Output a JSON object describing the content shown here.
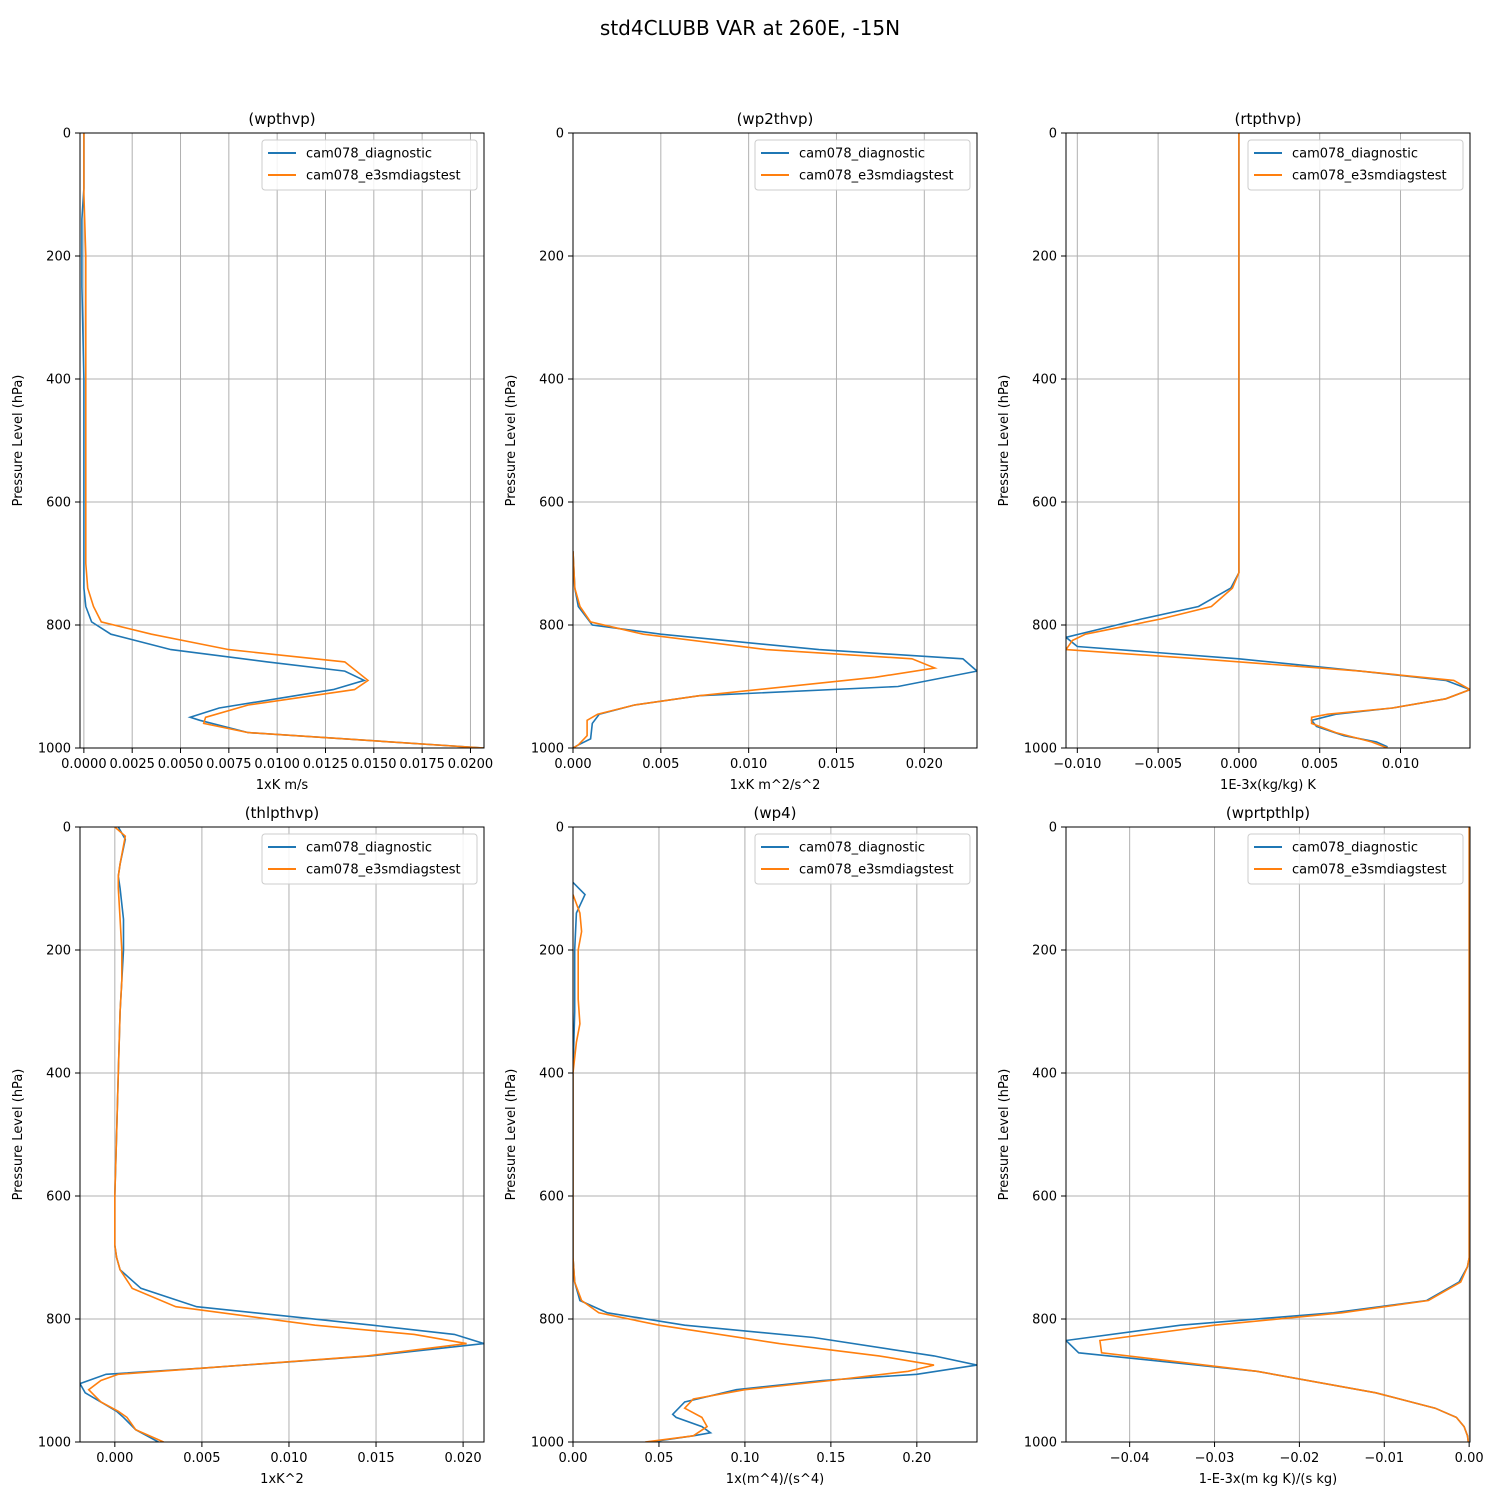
{
  "figure": {
    "title": "std4CLUBB VAR at 260E, -15N"
  },
  "colors": {
    "diagnostic": "#1f77b4",
    "e3smdiagstest": "#ff7f0e",
    "grid": "#b0b0b0",
    "axis": "#000000"
  },
  "chart_data": [
    {
      "type": "line",
      "title": "(wpthvp)",
      "xlabel": "1xK m/s",
      "ylabel": "Pressure Level (hPa)",
      "xlim": [
        -0.0002,
        0.0207
      ],
      "ylim": [
        1000,
        0
      ],
      "y_inverted": true,
      "grid": true,
      "legend": "top-right",
      "xticks": [
        0.0,
        0.0025,
        0.005,
        0.0075,
        0.01,
        0.0125,
        0.015,
        0.0175,
        0.02
      ],
      "xtick_labels": [
        "0.0000",
        "0.0025",
        "0.0050",
        "0.0075",
        "0.0100",
        "0.0125",
        "0.0150",
        "0.0175",
        "0.0200"
      ],
      "yticks": [
        0,
        200,
        400,
        600,
        800,
        1000
      ],
      "ytick_labels": [
        "0",
        "200",
        "400",
        "600",
        "800",
        "1000"
      ],
      "series": [
        {
          "name": "cam078_diagnostic",
          "x": [
            0.0,
            0.0,
            -0.0001,
            -0.0001,
            0.0,
            0.0,
            0.0,
            0.0,
            0.0,
            0.0001,
            0.0004,
            0.0014,
            0.0045,
            0.0095,
            0.0135,
            0.0145,
            0.0129,
            0.007,
            0.0055,
            0.006,
            0.0085,
            0.0207
          ],
          "y": [
            0,
            90,
            140,
            250,
            400,
            500,
            600,
            700,
            740,
            770,
            795,
            815,
            840,
            860,
            875,
            890,
            905,
            935,
            950,
            955,
            975,
            1000
          ]
        },
        {
          "name": "cam078_e3smdiagstest",
          "x": [
            0.0,
            0.0,
            0.0001,
            0.0001,
            0.0001,
            0.0001,
            0.0001,
            0.0001,
            0.0002,
            0.0005,
            0.0009,
            0.0035,
            0.0075,
            0.0135,
            0.0147,
            0.014,
            0.0085,
            0.0063,
            0.0062,
            0.0085,
            0.0207
          ],
          "y": [
            0,
            100,
            200,
            300,
            400,
            500,
            600,
            700,
            740,
            770,
            795,
            815,
            840,
            860,
            890,
            905,
            930,
            950,
            960,
            975,
            1000
          ]
        }
      ]
    },
    {
      "type": "line",
      "title": "(wp2thvp)",
      "xlabel": "1xK m^2/s^2",
      "ylabel": "Pressure Level (hPa)",
      "xlim": [
        0.0,
        0.023
      ],
      "ylim": [
        1000,
        0
      ],
      "y_inverted": true,
      "grid": true,
      "legend": "top-right",
      "xticks": [
        0.0,
        0.005,
        0.01,
        0.015,
        0.02
      ],
      "xtick_labels": [
        "0.000",
        "0.005",
        "0.010",
        "0.015",
        "0.020"
      ],
      "yticks": [
        0,
        200,
        400,
        600,
        800,
        1000
      ],
      "ytick_labels": [
        "0",
        "200",
        "400",
        "600",
        "800",
        "1000"
      ],
      "series": [
        {
          "name": "cam078_diagnostic",
          "x": [
            0.0,
            0.0001,
            0.0003,
            0.0011,
            0.005,
            0.014,
            0.0222,
            0.023,
            0.0185,
            0.0072,
            0.0035,
            0.0015,
            0.0011,
            0.001,
            0.0003,
            0.0
          ],
          "y": [
            680,
            740,
            770,
            800,
            815,
            840,
            855,
            875,
            900,
            915,
            930,
            945,
            960,
            985,
            995,
            1000
          ]
        },
        {
          "name": "cam078_e3smdiagstest",
          "x": [
            0.0,
            0.0001,
            0.0004,
            0.001,
            0.004,
            0.011,
            0.0193,
            0.0206,
            0.0172,
            0.0072,
            0.0035,
            0.0014,
            0.0008,
            0.0008,
            0.0003,
            0.0
          ],
          "y": [
            680,
            740,
            770,
            795,
            815,
            840,
            855,
            870,
            885,
            915,
            930,
            945,
            955,
            980,
            995,
            1000
          ]
        }
      ]
    },
    {
      "type": "line",
      "title": "(rtpthvp)",
      "xlabel": "1E-3x(kg/kg) K",
      "ylabel": "Pressure Level (hPa)",
      "xlim": [
        -0.0107,
        0.0143
      ],
      "ylim": [
        1000,
        0
      ],
      "y_inverted": true,
      "grid": true,
      "legend": "top-right",
      "xticks": [
        -0.01,
        -0.005,
        0.0,
        0.005,
        0.01
      ],
      "xtick_labels": [
        "−0.010",
        "−0.005",
        "0.000",
        "0.005",
        "0.010"
      ],
      "yticks": [
        0,
        200,
        400,
        600,
        800,
        1000
      ],
      "ytick_labels": [
        "0",
        "200",
        "400",
        "600",
        "800",
        "1000"
      ],
      "series": [
        {
          "name": "cam078_diagnostic",
          "x": [
            0.0,
            0.0,
            0.0,
            -0.0005,
            -0.0025,
            -0.006,
            -0.0107,
            -0.01,
            0.0,
            0.0075,
            0.0128,
            0.0143,
            0.0128,
            0.0095,
            0.006,
            0.0045,
            0.0048,
            0.0065,
            0.0085,
            0.0092
          ],
          "y": [
            0,
            400,
            715,
            740,
            770,
            790,
            820,
            835,
            855,
            875,
            890,
            905,
            920,
            935,
            945,
            955,
            965,
            980,
            990,
            998
          ]
        },
        {
          "name": "cam078_e3smdiagstest",
          "x": [
            0.0,
            0.0,
            0.0,
            -0.0004,
            -0.0017,
            -0.0048,
            -0.0095,
            -0.0103,
            -0.0107,
            -0.0025,
            0.0075,
            0.0133,
            0.0143,
            0.0128,
            0.0095,
            0.0055,
            0.0045,
            0.0045,
            0.006,
            0.0082,
            0.0092
          ],
          "y": [
            0,
            400,
            715,
            740,
            770,
            790,
            815,
            825,
            840,
            855,
            875,
            890,
            905,
            920,
            935,
            945,
            950,
            960,
            975,
            990,
            1000
          ]
        }
      ]
    },
    {
      "type": "line",
      "title": "(thlpthvp)",
      "xlabel": "1xK^2",
      "ylabel": "Pressure Level (hPa)",
      "xlim": [
        -0.002,
        0.0212
      ],
      "ylim": [
        1000,
        0
      ],
      "y_inverted": true,
      "grid": true,
      "legend": "top-right",
      "xticks": [
        0.0,
        0.005,
        0.01,
        0.015,
        0.02
      ],
      "xtick_labels": [
        "0.000",
        "0.005",
        "0.010",
        "0.015",
        "0.020"
      ],
      "yticks": [
        0,
        200,
        400,
        600,
        800,
        1000
      ],
      "ytick_labels": [
        "0",
        "200",
        "400",
        "600",
        "800",
        "1000"
      ],
      "series": [
        {
          "name": "cam078_diagnostic",
          "x": [
            0.0002,
            0.0006,
            0.0003,
            0.0002,
            0.0003,
            0.0005,
            0.0005,
            0.0004,
            0.0003,
            0.0002,
            0.0001,
            0.0,
            0.0,
            0.0001,
            0.0003,
            0.0015,
            0.0047,
            0.0148,
            0.0195,
            0.0212,
            0.0147,
            0.005,
            -0.0005,
            -0.002,
            -0.0017,
            -0.0005,
            0.0001,
            0.0005,
            0.0012,
            0.0025
          ],
          "y": [
            0,
            20,
            60,
            80,
            100,
            150,
            200,
            250,
            300,
            400,
            500,
            600,
            680,
            700,
            720,
            750,
            780,
            810,
            825,
            840,
            860,
            880,
            890,
            905,
            920,
            940,
            950,
            960,
            980,
            1000
          ]
        },
        {
          "name": "cam078_e3smdiagstest",
          "x": [
            0.0,
            0.0006,
            0.0003,
            0.0002,
            0.0002,
            0.0003,
            0.0004,
            0.0004,
            0.0003,
            0.0002,
            0.0001,
            0.0,
            0.0,
            0.0001,
            0.0003,
            0.001,
            0.0035,
            0.0115,
            0.0172,
            0.0202,
            0.0145,
            0.005,
            0.0002,
            -0.0008,
            -0.0015,
            -0.0008,
            0.0002,
            0.0007,
            0.0012,
            0.0028
          ],
          "y": [
            0,
            15,
            60,
            80,
            100,
            150,
            200,
            250,
            300,
            400,
            500,
            600,
            680,
            700,
            720,
            750,
            780,
            810,
            825,
            840,
            860,
            880,
            890,
            900,
            915,
            935,
            950,
            960,
            980,
            1000
          ]
        }
      ]
    },
    {
      "type": "line",
      "title": "(wp4)",
      "xlabel": "1x(m^4)/(s^4)",
      "ylabel": "Pressure Level (hPa)",
      "xlim": [
        0.0,
        0.235
      ],
      "ylim": [
        1000,
        0
      ],
      "y_inverted": true,
      "grid": true,
      "legend": "top-right",
      "xticks": [
        0.0,
        0.05,
        0.1,
        0.15,
        0.2
      ],
      "xtick_labels": [
        "0.00",
        "0.05",
        "0.10",
        "0.15",
        "0.20"
      ],
      "yticks": [
        0,
        200,
        400,
        600,
        800,
        1000
      ],
      "ytick_labels": [
        "0",
        "200",
        "400",
        "600",
        "800",
        "1000"
      ],
      "series": [
        {
          "name": "cam078_diagnostic",
          "x": [
            0.0,
            0.007,
            0.002,
            0.001,
            0.001,
            0.0,
            0.0,
            0.0,
            0.001,
            0.004,
            0.02,
            0.065,
            0.14,
            0.21,
            0.235,
            0.2,
            0.145,
            0.095,
            0.065,
            0.058,
            0.06,
            0.075,
            0.08,
            0.07,
            0.045
          ],
          "y": [
            90,
            110,
            140,
            200,
            300,
            400,
            500,
            700,
            740,
            770,
            790,
            810,
            830,
            860,
            875,
            890,
            900,
            915,
            935,
            955,
            960,
            975,
            985,
            990,
            1000
          ]
        },
        {
          "name": "cam078_e3smdiagstest",
          "x": [
            0.0,
            0.004,
            0.005,
            0.003,
            0.003,
            0.004,
            0.002,
            0.0,
            0.0,
            0.0,
            0.001,
            0.005,
            0.015,
            0.05,
            0.12,
            0.178,
            0.21,
            0.195,
            0.15,
            0.1,
            0.07,
            0.065,
            0.075,
            0.078,
            0.07,
            0.042
          ],
          "y": [
            110,
            140,
            170,
            200,
            280,
            320,
            350,
            400,
            500,
            700,
            740,
            770,
            790,
            810,
            840,
            860,
            875,
            885,
            900,
            915,
            930,
            945,
            960,
            975,
            990,
            1000
          ]
        }
      ]
    },
    {
      "type": "line",
      "title": "(wprtpthlp)",
      "xlabel": "1-E-3x(m kg K)/(s kg)",
      "ylabel": "Pressure Level (hPa)",
      "xlim": [
        -0.0475,
        0.0001
      ],
      "ylim": [
        1000,
        0
      ],
      "y_inverted": true,
      "grid": true,
      "legend": "top-right",
      "xticks": [
        -0.04,
        -0.03,
        -0.02,
        -0.01,
        0.0
      ],
      "xtick_labels": [
        "−0.04",
        "−0.03",
        "−0.02",
        "−0.01",
        "0.00"
      ],
      "yticks": [
        0,
        200,
        400,
        600,
        800,
        1000
      ],
      "ytick_labels": [
        "0",
        "200",
        "400",
        "600",
        "800",
        "1000"
      ],
      "series": [
        {
          "name": "cam078_diagnostic",
          "x": [
            0.0,
            0.0,
            -0.0002,
            -0.0012,
            -0.005,
            -0.016,
            -0.034,
            -0.0475,
            -0.046,
            -0.025,
            -0.011,
            -0.004,
            -0.0015,
            -0.0006,
            -0.0002,
            -0.0001
          ],
          "y": [
            0,
            700,
            715,
            740,
            770,
            790,
            810,
            835,
            855,
            885,
            920,
            945,
            960,
            975,
            990,
            1000
          ]
        },
        {
          "name": "cam078_e3smdiagstest",
          "x": [
            0.0,
            0.0,
            -0.0002,
            -0.001,
            -0.0048,
            -0.015,
            -0.03,
            -0.0435,
            -0.0433,
            -0.025,
            -0.011,
            -0.004,
            -0.0015,
            -0.0006,
            -0.0002,
            -0.0001
          ],
          "y": [
            0,
            700,
            715,
            740,
            770,
            790,
            810,
            835,
            855,
            885,
            920,
            945,
            960,
            975,
            990,
            1000
          ]
        }
      ]
    }
  ]
}
